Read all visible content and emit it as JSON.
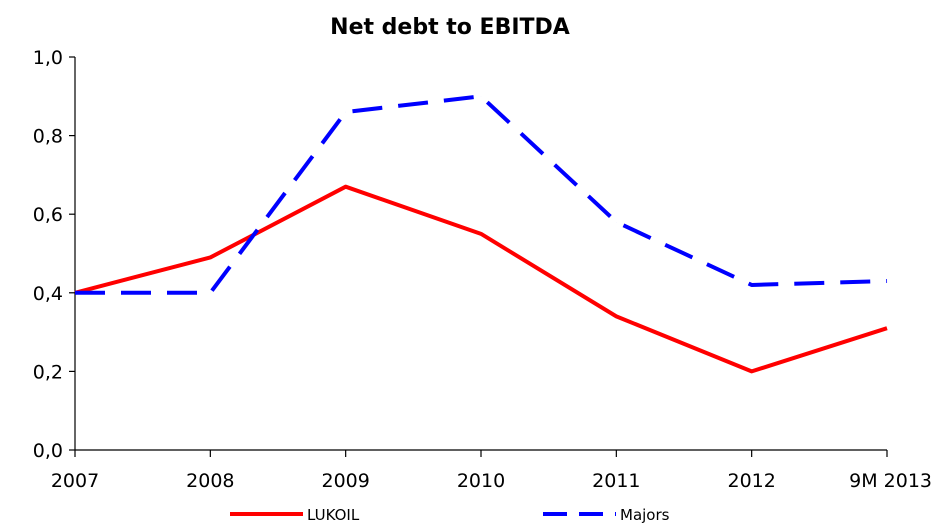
{
  "chart_data": {
    "type": "line",
    "title": "Net debt to EBITDA",
    "xlabel": "",
    "ylabel": "",
    "categories": [
      "2007",
      "2008",
      "2009",
      "2010",
      "2011",
      "2012",
      "9M 2013"
    ],
    "y_ticks": [
      "0,0",
      "0,2",
      "0,4",
      "0,6",
      "0,8",
      "1,0"
    ],
    "ylim": [
      0,
      1
    ],
    "grid": false,
    "legend_position": "bottom",
    "series": [
      {
        "name": "LUKOIL",
        "values": [
          0.4,
          0.49,
          0.67,
          0.55,
          0.34,
          0.2,
          0.31
        ],
        "color": "#ff0000",
        "style": "solid"
      },
      {
        "name": "Majors",
        "values": [
          0.4,
          0.4,
          0.86,
          0.9,
          0.58,
          0.42,
          0.43
        ],
        "color": "#0000ff",
        "style": "dashed"
      }
    ]
  }
}
